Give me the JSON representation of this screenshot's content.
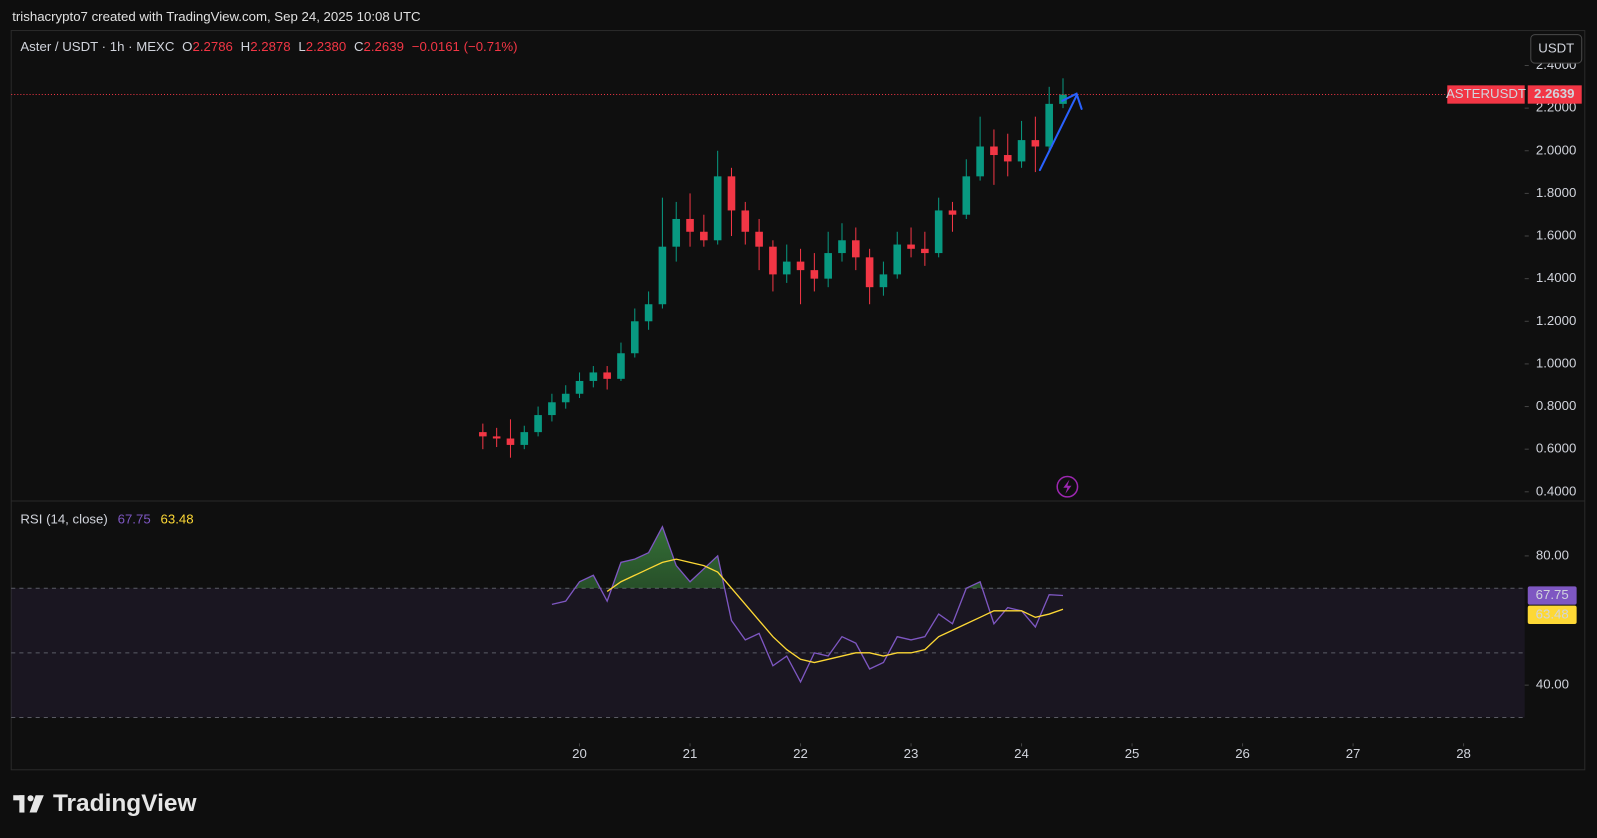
{
  "header": {
    "text": "trishacrypto7 created with TradingView.com, Sep 24, 2025 10:08 UTC"
  },
  "legend": {
    "symbol": "Aster / USDT · 1h · MEXC",
    "o_label": "O",
    "o": "2.2786",
    "h_label": "H",
    "h": "2.2878",
    "l_label": "L",
    "l": "2.2380",
    "c_label": "C",
    "c": "2.2639",
    "change": "−0.0161 (−0.71%)"
  },
  "currency_button": "USDT",
  "footer": {
    "logo": "TradingView"
  },
  "chart_data": [
    {
      "type": "candlestick",
      "symbol_label": "ASTERUSDT",
      "up_color": "#089981",
      "down_color": "#f23645",
      "last_price_line": true,
      "grid": false,
      "x": [
        19.125,
        19.25,
        19.375,
        19.5,
        19.625,
        19.75,
        19.875,
        20,
        20.125,
        20.25,
        20.375,
        20.5,
        20.625,
        20.75,
        20.875,
        21,
        21.125,
        21.25,
        21.375,
        21.5,
        21.625,
        21.75,
        21.875,
        22,
        22.125,
        22.25,
        22.375,
        22.5,
        22.625,
        22.75,
        22.875,
        23,
        23.125,
        23.25,
        23.375,
        23.5,
        23.625,
        23.75,
        23.875,
        24,
        24.125,
        24.25,
        24.375
      ],
      "open": [
        0.68,
        0.66,
        0.65,
        0.62,
        0.68,
        0.76,
        0.82,
        0.86,
        0.92,
        0.96,
        0.93,
        1.05,
        1.2,
        1.28,
        1.55,
        1.68,
        1.62,
        1.58,
        1.88,
        1.72,
        1.62,
        1.55,
        1.42,
        1.48,
        1.44,
        1.4,
        1.52,
        1.58,
        1.5,
        1.36,
        1.42,
        1.56,
        1.54,
        1.52,
        1.72,
        1.7,
        1.88,
        2.02,
        1.98,
        1.95,
        2.05,
        2.02,
        2.22
      ],
      "high": [
        0.72,
        0.7,
        0.74,
        0.71,
        0.8,
        0.86,
        0.9,
        0.96,
        0.99,
        0.99,
        1.1,
        1.26,
        1.34,
        1.78,
        1.76,
        1.8,
        1.7,
        2.0,
        1.92,
        1.76,
        1.68,
        1.58,
        1.56,
        1.54,
        1.52,
        1.62,
        1.66,
        1.64,
        1.54,
        1.48,
        1.62,
        1.64,
        1.62,
        1.78,
        1.76,
        1.96,
        2.16,
        2.1,
        2.08,
        2.14,
        2.16,
        2.3,
        2.34
      ],
      "low": [
        0.6,
        0.61,
        0.56,
        0.6,
        0.66,
        0.73,
        0.79,
        0.84,
        0.89,
        0.88,
        0.92,
        1.03,
        1.16,
        1.26,
        1.48,
        1.55,
        1.55,
        1.56,
        1.6,
        1.56,
        1.44,
        1.34,
        1.38,
        1.28,
        1.34,
        1.36,
        1.48,
        1.44,
        1.28,
        1.32,
        1.4,
        1.5,
        1.46,
        1.5,
        1.62,
        1.68,
        1.86,
        1.84,
        1.88,
        1.92,
        1.9,
        2.0,
        2.2
      ],
      "close": [
        0.66,
        0.65,
        0.62,
        0.68,
        0.76,
        0.82,
        0.86,
        0.92,
        0.96,
        0.93,
        1.05,
        1.2,
        1.28,
        1.55,
        1.68,
        1.62,
        1.58,
        1.88,
        1.72,
        1.62,
        1.55,
        1.42,
        1.48,
        1.44,
        1.4,
        1.52,
        1.58,
        1.5,
        1.36,
        1.42,
        1.56,
        1.54,
        1.52,
        1.72,
        1.7,
        1.88,
        2.02,
        1.98,
        1.95,
        2.05,
        2.02,
        2.22,
        2.2639
      ],
      "xlim": [
        14.857,
        28.553
      ],
      "xticks": [
        20,
        21,
        22,
        23,
        24,
        25,
        26,
        27,
        28
      ],
      "ylim": [
        0.357,
        2.564
      ],
      "yticks": [
        {
          "value": 0.4,
          "label": "0.4000"
        },
        {
          "value": 0.6,
          "label": "0.6000"
        },
        {
          "value": 0.8,
          "label": "0.8000"
        },
        {
          "value": 1.0,
          "label": "1.0000"
        },
        {
          "value": 1.2,
          "label": "1.2000"
        },
        {
          "value": 1.4,
          "label": "1.4000"
        },
        {
          "value": 1.6,
          "label": "1.6000"
        },
        {
          "value": 1.8,
          "label": "1.8000"
        },
        {
          "value": 2.0,
          "label": "2.0000"
        },
        {
          "value": 2.2,
          "label": "2.2000"
        },
        {
          "value": 2.4,
          "label": "2.4000"
        }
      ]
    },
    {
      "type": "line",
      "title": "RSI (14, close)",
      "x": [
        19.75,
        19.875,
        20,
        20.125,
        20.25,
        20.375,
        20.5,
        20.625,
        20.75,
        20.875,
        21,
        21.125,
        21.25,
        21.375,
        21.5,
        21.625,
        21.75,
        21.875,
        22,
        22.125,
        22.25,
        22.375,
        22.5,
        22.625,
        22.75,
        22.875,
        23,
        23.125,
        23.25,
        23.375,
        23.5,
        23.625,
        23.75,
        23.875,
        24,
        24.125,
        24.25,
        24.375
      ],
      "series": [
        {
          "color": "#7e57c2",
          "values": [
            65,
            66,
            72,
            74,
            66,
            78,
            79,
            81,
            89,
            77,
            72,
            76,
            80,
            60,
            54,
            56,
            46,
            49,
            41,
            50,
            49,
            55,
            53,
            45,
            47,
            55,
            54,
            55,
            62,
            59,
            70,
            72,
            59,
            64,
            63,
            58,
            68,
            67.75
          ]
        },
        {
          "color": "#fdd835",
          "values": [
            null,
            null,
            null,
            null,
            69,
            72,
            74,
            76,
            78,
            79,
            78,
            77,
            75,
            70,
            65,
            60,
            55,
            51,
            48,
            47,
            48,
            49,
            50,
            50,
            49,
            50,
            50,
            51,
            55,
            57,
            59,
            61,
            63,
            63,
            63,
            61,
            62,
            63.48
          ]
        }
      ],
      "overbought_fill": "#2e7d32",
      "band": [
        30,
        70
      ],
      "hlines": [
        70,
        50,
        30
      ],
      "band_color": "#7e57c2",
      "xlim": [
        14.857,
        28.553
      ],
      "ylim": [
        22,
        97
      ],
      "yticks": [
        {
          "value": 40,
          "label": "40.00"
        },
        {
          "value": 80,
          "label": "80.00"
        }
      ]
    }
  ]
}
